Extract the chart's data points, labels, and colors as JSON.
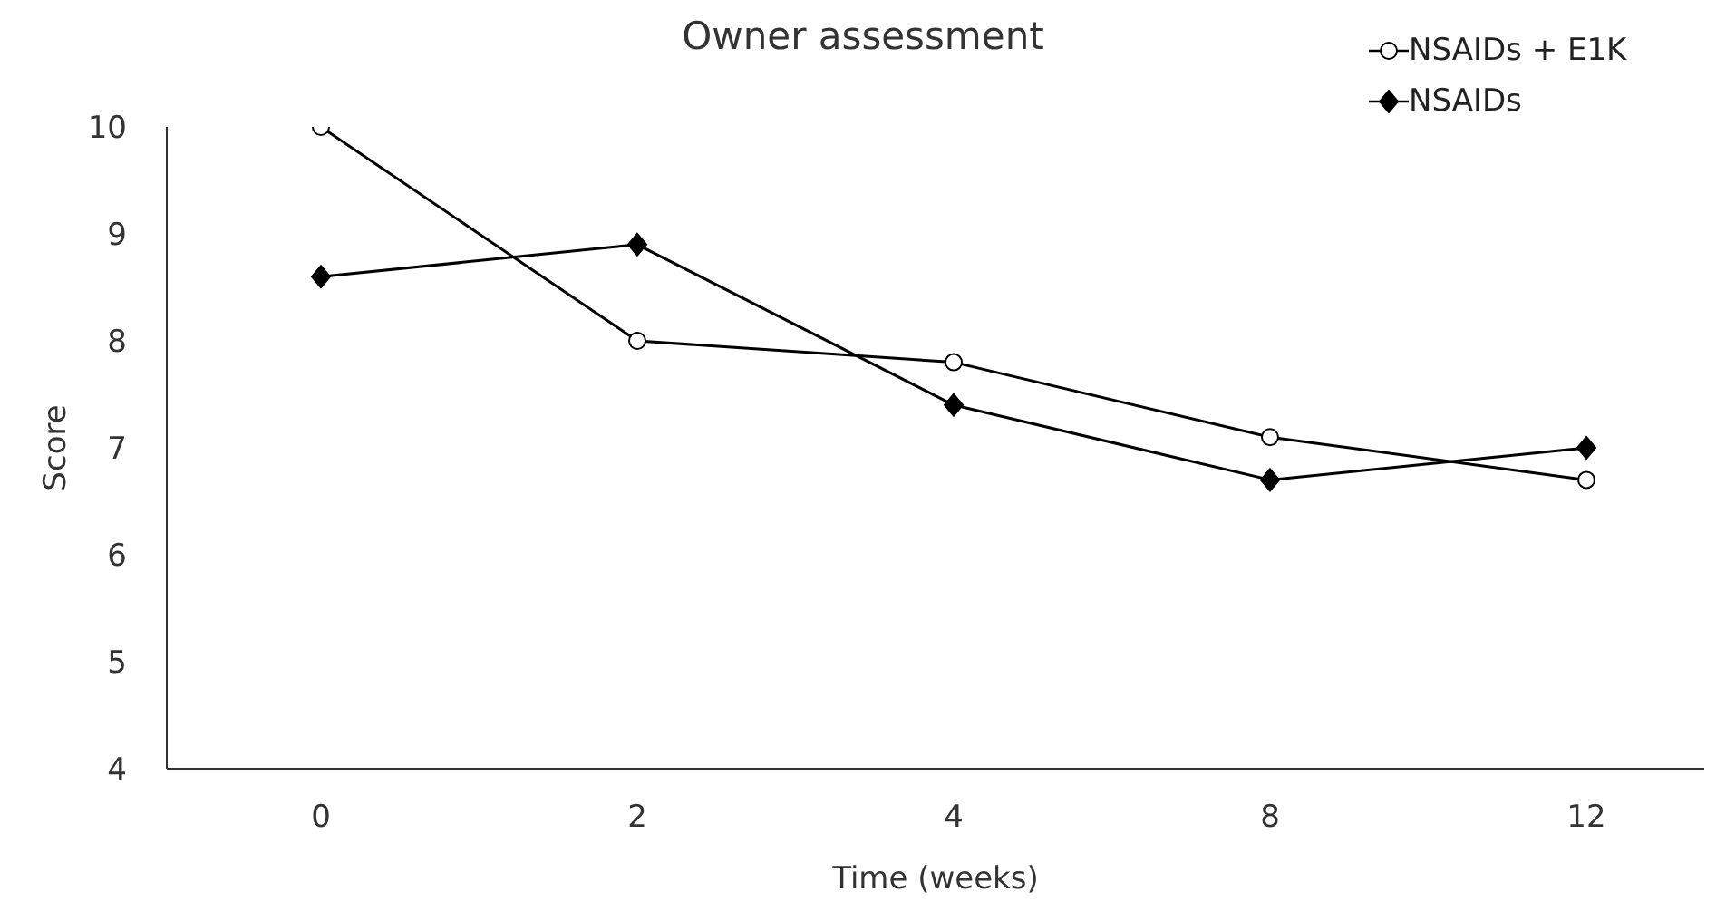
{
  "chart_data": {
    "type": "line",
    "title": "Owner assessment",
    "xlabel": "Time (weeks)",
    "ylabel": "Score",
    "categories": [
      "0",
      "2",
      "4",
      "8",
      "12"
    ],
    "series": [
      {
        "name": "NSAIDs + E1K",
        "color": "#000000",
        "marker": "circle",
        "values": [
          10,
          8.0,
          7.8,
          7.1,
          6.7
        ]
      },
      {
        "name": "NSAIDs",
        "color": "#000000",
        "marker": "diamond",
        "values": [
          8.6,
          8.9,
          7.4,
          6.7,
          7.0
        ]
      }
    ],
    "ylim": [
      4,
      10
    ],
    "yticks": [
      4,
      5,
      6,
      7,
      8,
      9,
      10
    ],
    "grid": false,
    "legend": "top right",
    "line_style": "solid"
  }
}
